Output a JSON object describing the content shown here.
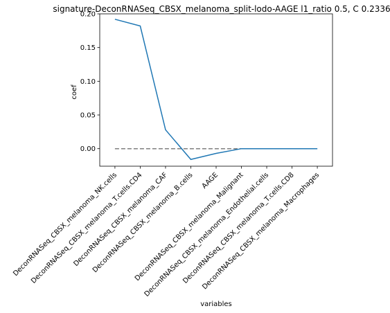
{
  "chart_data": {
    "type": "line",
    "title": "signature-DeconRNASeq_CBSX_melanoma_split-lodo-AAGE l1_ratio 0.5, C 0.2336",
    "xlabel": "variables",
    "ylabel": "coef",
    "categories": [
      "DeconRNASeq_CBSX_melanoma_NK.cells",
      "DeconRNASeq_CBSX_melanoma_T.cells.CD4",
      "DeconRNASeq_CBSX_melanoma_CAF",
      "DeconRNASeq_CBSX_melanoma_B.cells",
      "AAGE",
      "DeconRNASeq_CBSX_melanoma_Malignant",
      "DeconRNASeq_CBSX_melanoma_Endothelial.cells",
      "DeconRNASeq_CBSX_melanoma_T.cells.CD8",
      "DeconRNASeq_CBSX_melanoma_Macrophages"
    ],
    "series": [
      {
        "values": [
          0.192,
          0.182,
          0.028,
          -0.016,
          -0.007,
          0.0,
          0.0,
          0.0,
          0.0
        ],
        "color": "#1f77b4"
      }
    ],
    "reference_line": {
      "y": 0.0,
      "style": "dashed",
      "color": "#7f7f7f"
    },
    "ylim": [
      -0.026,
      0.2
    ],
    "yticks": [
      0.0,
      0.05,
      0.1,
      0.15,
      0.2
    ],
    "ytick_labels": [
      "0.00",
      "0.05",
      "0.10",
      "0.15",
      "0.20"
    ],
    "grid": false,
    "legend": "none"
  }
}
